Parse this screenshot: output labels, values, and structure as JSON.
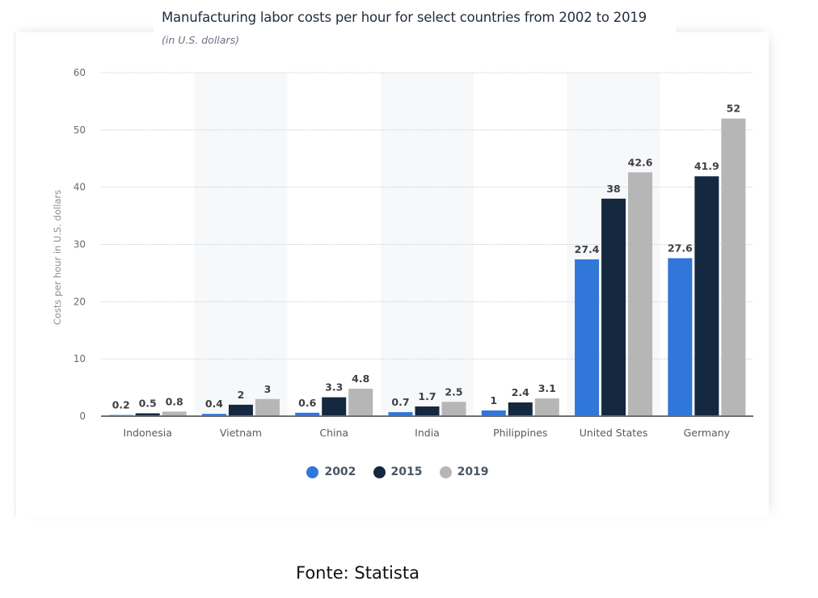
{
  "chart_data": {
    "type": "bar",
    "title": "Manufacturing labor costs per hour for select countries from 2002 to 2019",
    "subtitle": "(in U.S. dollars)",
    "xlabel": "",
    "ylabel": "Costs per hour in U.S. dollars",
    "ylim": [
      0,
      60
    ],
    "yticks": [
      0,
      10,
      20,
      30,
      40,
      50,
      60
    ],
    "grid": true,
    "legend_position": "bottom-center",
    "categories": [
      "Indonesia",
      "Vietnam",
      "China",
      "India",
      "Philippines",
      "United States",
      "Germany"
    ],
    "series": [
      {
        "name": "2002",
        "color": "#3176d9",
        "values": [
          0.2,
          0.4,
          0.6,
          0.7,
          1,
          27.4,
          27.6
        ]
      },
      {
        "name": "2015",
        "color": "#14283f",
        "values": [
          0.5,
          2,
          3.3,
          1.7,
          2.4,
          38,
          41.9
        ]
      },
      {
        "name": "2019",
        "color": "#b6b6b6",
        "values": [
          0.8,
          3,
          4.8,
          2.5,
          3.1,
          42.6,
          52
        ]
      }
    ]
  },
  "footer": {
    "source_text": "Fonte: Statista"
  }
}
